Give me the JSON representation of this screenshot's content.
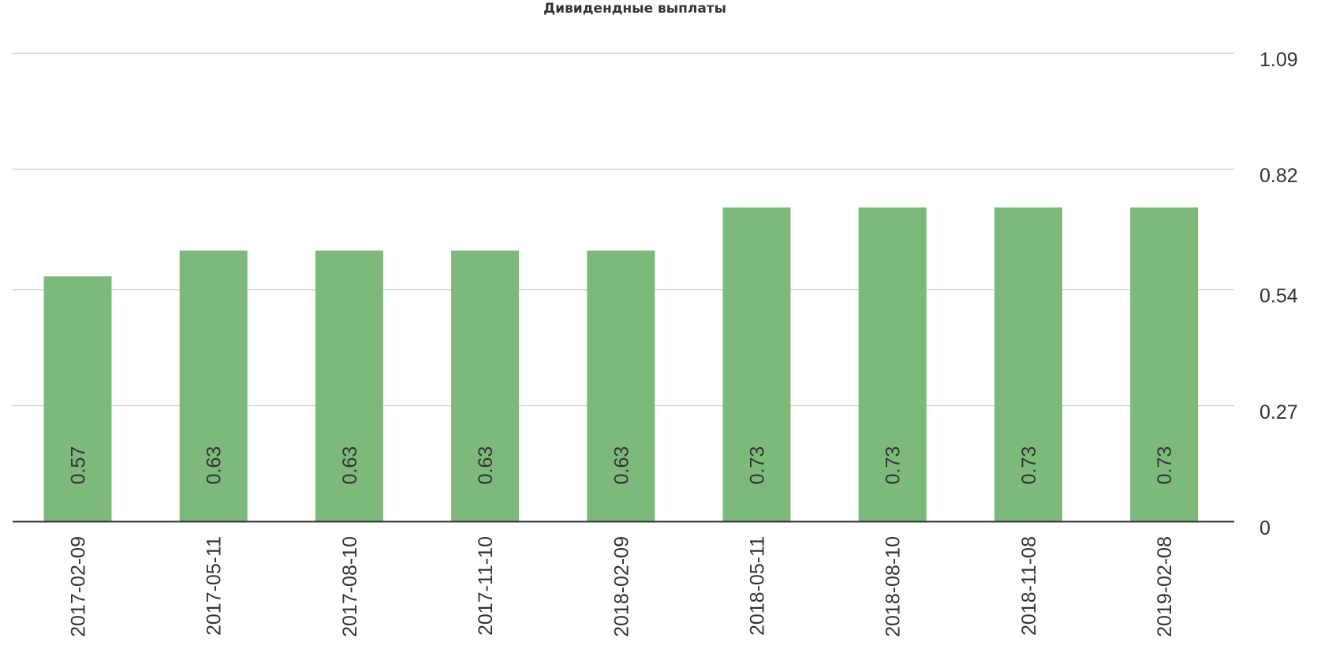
{
  "chart_data": {
    "type": "bar",
    "title": "Дивидендные выплаты",
    "xlabel": "",
    "ylabel": "",
    "categories": [
      "2017-02-09",
      "2017-05-11",
      "2017-08-10",
      "2017-11-10",
      "2018-02-09",
      "2018-05-11",
      "2018-08-10",
      "2018-11-08",
      "2019-02-08"
    ],
    "values": [
      0.57,
      0.63,
      0.63,
      0.63,
      0.63,
      0.73,
      0.73,
      0.73,
      0.73
    ],
    "data_labels": [
      "0.57",
      "0.63",
      "0.63",
      "0.63",
      "0.63",
      "0.73",
      "0.73",
      "0.73",
      "0.73"
    ],
    "ylim": [
      0,
      1.09
    ],
    "yticks": [
      0,
      0.27,
      0.54,
      0.82,
      1.09
    ],
    "ytick_labels": [
      "0",
      "0.27",
      "0.54",
      "0.82",
      "1.09"
    ],
    "y_axis_side": "right",
    "grid": true,
    "legend": "none",
    "colors": {
      "bar": "#7cb97b",
      "grid": "#cccccc",
      "baseline": "#333333",
      "text": "#333333",
      "title": "#333333"
    }
  }
}
